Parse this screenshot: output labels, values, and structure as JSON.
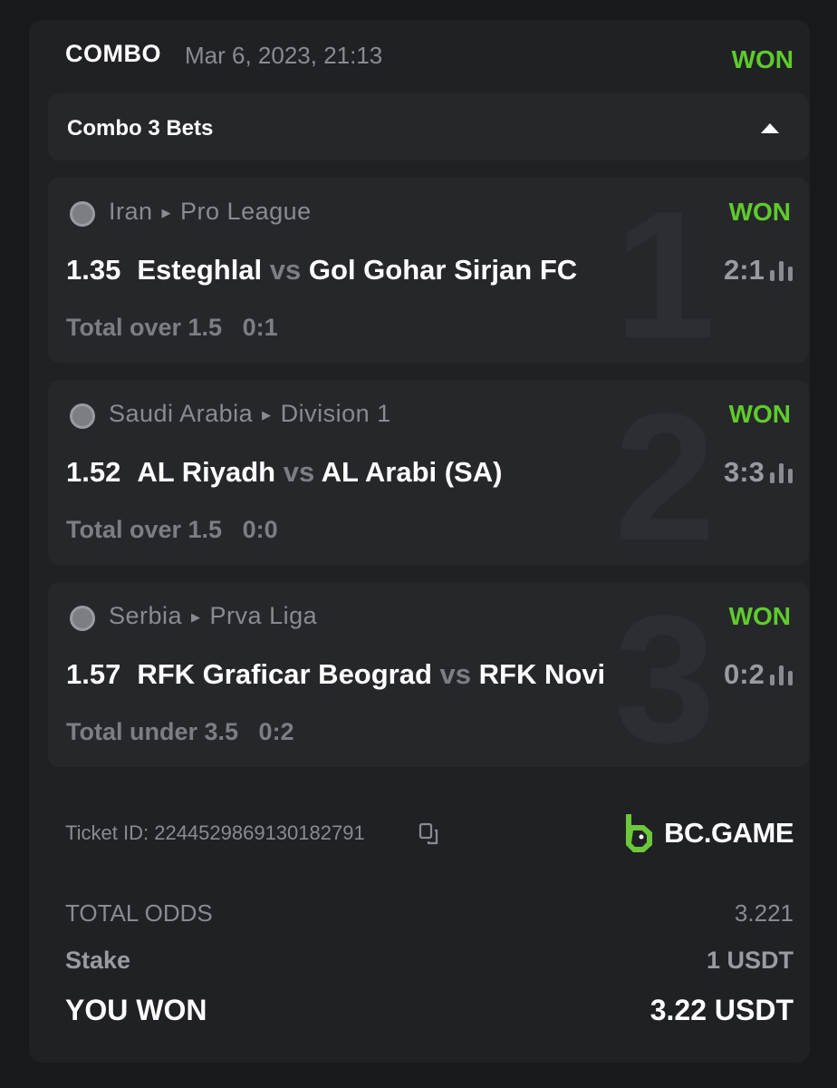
{
  "header": {
    "type": "COMBO",
    "date": "Mar 6, 2023, 21:13",
    "status": "WON"
  },
  "combo": {
    "label": "Combo 3 Bets",
    "toggle_icon": "caret-up-icon"
  },
  "bets": [
    {
      "index": "1",
      "sport_icon": "soccer-ball-icon",
      "country": "Iran",
      "league": "Pro League",
      "status": "WON",
      "odds": "1.35",
      "home": "Esteghlal",
      "vs": "vs",
      "away": "Gol Gohar Sirjan FC",
      "score": "2:1",
      "market": "Total over 1.5",
      "market_score": "0:1"
    },
    {
      "index": "2",
      "sport_icon": "soccer-ball-icon",
      "country": "Saudi Arabia",
      "league": "Division 1",
      "status": "WON",
      "odds": "1.52",
      "home": "AL Riyadh",
      "vs": "vs",
      "away": "AL Arabi (SA)",
      "score": "3:3",
      "market": "Total over 1.5",
      "market_score": "0:0"
    },
    {
      "index": "3",
      "sport_icon": "soccer-ball-icon",
      "country": "Serbia",
      "league": "Prva Liga",
      "status": "WON",
      "odds": "1.57",
      "home": "RFK Graficar Beograd",
      "vs": "vs",
      "away": "RFK Novi Sad",
      "score": "0:2",
      "market": "Total under 3.5",
      "market_score": "0:2"
    }
  ],
  "ticket": {
    "label": "Ticket ID:",
    "id": "2244529869130182791"
  },
  "brand": {
    "name": "BC.GAME",
    "color": "#6cc83a"
  },
  "summary": {
    "total_odds_label": "TOTAL ODDS",
    "total_odds": "3.221",
    "stake_label": "Stake",
    "stake": "1 USDT",
    "won_label": "YOU WON",
    "won": "3.22 USDT"
  },
  "colors": {
    "won": "#5fcb2c"
  }
}
